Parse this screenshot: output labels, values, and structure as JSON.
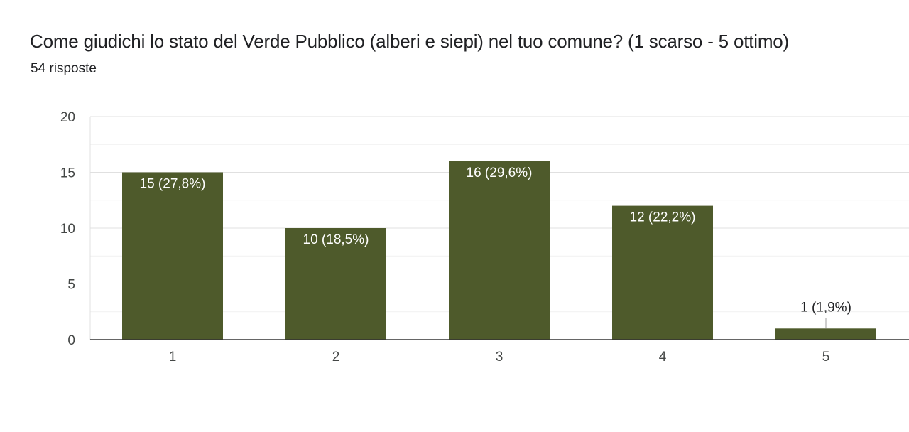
{
  "header": {
    "title": "Come giudichi lo stato del Verde Pubblico (alberi e siepi) nel tuo comune? (1 scarso - 5 ottimo)",
    "responses": "54 risposte"
  },
  "colors": {
    "bar": "#4e5a2b",
    "label_inside": "#ffffff",
    "label_outside": "#202124",
    "grid_major": "#e0e0e0",
    "grid_minor": "#f1f1f1",
    "axis": "#333333"
  },
  "chart_data": {
    "type": "bar",
    "categories": [
      "1",
      "2",
      "3",
      "4",
      "5"
    ],
    "values": [
      15,
      10,
      16,
      12,
      1
    ],
    "data_labels": [
      "15 (27,8%)",
      "10 (18,5%)",
      "16 (29,6%)",
      "12 (22,2%)",
      "1 (1,9%)"
    ],
    "ylim": [
      0,
      20
    ],
    "yticks": [
      "0",
      "5",
      "10",
      "15",
      "20"
    ],
    "ytick_values": [
      0,
      5,
      10,
      15,
      20
    ],
    "grid": true,
    "legend": "none"
  }
}
